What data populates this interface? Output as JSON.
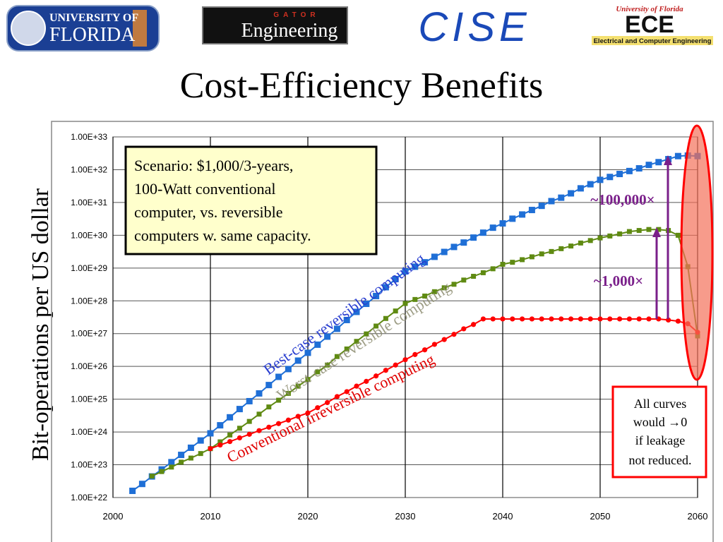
{
  "logos": {
    "uf": [
      "UNIVERSITY OF",
      "FLORIDA"
    ],
    "gator": [
      "GATOR",
      "Engineering"
    ],
    "cise": "CISE",
    "ece": [
      "University of Florida",
      "ECE",
      "Electrical and Computer Engineering"
    ]
  },
  "chart_data": {
    "type": "line",
    "title": "Cost-Efficiency Benefits",
    "y_label": "Bit-operations per US dollar",
    "log_y": true,
    "grid": true,
    "xlim": [
      2000,
      2060
    ],
    "xticks": [
      2000,
      2010,
      2020,
      2030,
      2040,
      2050,
      2060
    ],
    "ylim": [
      1e+22,
      1e+33
    ],
    "yticks": [
      {
        "value": 1e+22,
        "label": "1.00E+22"
      },
      {
        "value": 1e+23,
        "label": "1.00E+23"
      },
      {
        "value": 1e+24,
        "label": "1.00E+24"
      },
      {
        "value": 1e+25,
        "label": "1.00E+25"
      },
      {
        "value": 1e+26,
        "label": "1.00E+26"
      },
      {
        "value": 1e+27,
        "label": "1.00E+27"
      },
      {
        "value": 1e+28,
        "label": "1.00E+28"
      },
      {
        "value": 1e+29,
        "label": "1.00E+29"
      },
      {
        "value": 1e+30,
        "label": "1.00E+30"
      },
      {
        "value": 1e+31,
        "label": "1.00E+31"
      },
      {
        "value": 1e+32,
        "label": "1.00E+32"
      },
      {
        "value": 1e+33,
        "label": "1.00E+33"
      }
    ],
    "x": [
      2002,
      2003,
      2004,
      2005,
      2006,
      2007,
      2008,
      2009,
      2010,
      2011,
      2012,
      2013,
      2014,
      2015,
      2016,
      2017,
      2018,
      2019,
      2020,
      2021,
      2022,
      2023,
      2024,
      2025,
      2026,
      2027,
      2028,
      2029,
      2030,
      2031,
      2032,
      2033,
      2034,
      2035,
      2036,
      2037,
      2038,
      2039,
      2040,
      2041,
      2042,
      2043,
      2044,
      2045,
      2046,
      2047,
      2048,
      2049,
      2050,
      2051,
      2052,
      2053,
      2054,
      2055,
      2056,
      2057,
      2058,
      2059,
      2060
    ],
    "series": [
      {
        "name": "Best-case reversible computing",
        "color": "#1f6fd6",
        "label_color": "#2a3fd0",
        "marker": "square",
        "values": [
          1.6e+22,
          2.6e+22,
          4.4e+22,
          7.2e+22,
          1.2e+23,
          2e+23,
          3.3e+23,
          5.5e+23,
          9.1e+23,
          1.6e+24,
          2.8e+24,
          5e+24,
          8.7e+24,
          1.5e+25,
          2.7e+25,
          4.8e+25,
          8.3e+25,
          1.5e+26,
          2.6e+26,
          4.6e+26,
          8.1e+26,
          1.4e+27,
          2.6e+27,
          4.6e+27,
          8.1e+27,
          1.4e+28,
          2.6e+28,
          4.6e+28,
          7.9e+28,
          1.1e+29,
          1.5e+29,
          2.2e+29,
          3.1e+29,
          4.4e+29,
          6e+29,
          8.5e+29,
          1.2e+30,
          1.7e+30,
          2.3e+30,
          3.2e+30,
          4.3e+30,
          5.9e+30,
          7.9e+30,
          1.1e+31,
          1.4e+31,
          1.9e+31,
          2.7e+31,
          3.6e+31,
          4.9e+31,
          6e+31,
          7.4e+31,
          9.1e+31,
          1.1e+32,
          1.4e+32,
          1.7e+32,
          2.1e+32,
          2.6e+32,
          2.7e+32,
          2.6e+32
        ]
      },
      {
        "name": "Worst-case reversible computing",
        "color": "#5f8a12",
        "label_color": "#8c8c70",
        "marker": "square",
        "values": [
          null,
          null,
          4.5e+22,
          6.2e+22,
          8.5e+22,
          1.2e+23,
          1.6e+23,
          2.2e+23,
          3.1e+23,
          5e+23,
          8.1e+23,
          1.3e+24,
          2.1e+24,
          3.5e+24,
          5.8e+24,
          9.3e+24,
          1.5e+25,
          2.5e+25,
          4e+25,
          6.8e+25,
          1.1e+26,
          2e+26,
          3.4e+26,
          5.8e+26,
          9.8e+26,
          1.7e+27,
          2.9e+27,
          4.9e+27,
          8.3e+27,
          1.1e+28,
          1.4e+28,
          1.9e+28,
          2.5e+28,
          3.2e+28,
          4.3e+28,
          5.6e+28,
          7.2e+28,
          9.5e+28,
          1.3e+29,
          1.5e+29,
          1.8e+29,
          2.2e+29,
          2.7e+29,
          3.2e+29,
          3.9e+29,
          4.7e+29,
          5.8e+29,
          6.9e+29,
          8.3e+29,
          9.5e+29,
          1.1e+30,
          1.3e+30,
          1.4e+30,
          1.5e+30,
          1.5e+30,
          1.4e+30,
          1e+30,
          1.1e+29,
          8.5e+26
        ]
      },
      {
        "name": "Conventional irreversible computing",
        "color": "#ff0000",
        "label_color": "#e00000",
        "marker": "circle",
        "values": [
          null,
          null,
          null,
          null,
          null,
          null,
          null,
          null,
          3.1e+23,
          4e+23,
          5.1e+23,
          6.6e+23,
          8.5e+23,
          1.1e+24,
          1.4e+24,
          1.8e+24,
          2.3e+24,
          3e+24,
          3.8e+24,
          5.5e+24,
          7.9e+24,
          1.2e+25,
          1.7e+25,
          2.5e+25,
          3.5e+25,
          5.1e+25,
          7.6e+25,
          1.1e+26,
          1.6e+26,
          2.3e+26,
          3.2e+26,
          4.7e+26,
          6.6e+26,
          9.5e+26,
          1.4e+27,
          1.9e+27,
          2.8e+27,
          2.8e+27,
          2.8e+27,
          2.8e+27,
          2.8e+27,
          2.8e+27,
          2.8e+27,
          2.8e+27,
          2.8e+27,
          2.8e+27,
          2.8e+27,
          2.8e+27,
          2.8e+27,
          2.8e+27,
          2.8e+27,
          2.8e+27,
          2.8e+27,
          2.8e+27,
          2.8e+27,
          2.6e+27,
          2.4e+27,
          2e+27,
          1.1e+27
        ]
      }
    ],
    "annotations": {
      "scenario": [
        "Scenario: $1,000/3-years,",
        "100-Watt conventional",
        "computer, vs. reversible",
        "computers w. same capacity."
      ],
      "ratio_large": "~100,000×",
      "ratio_small": "~1,000×",
      "leakage": [
        "All curves",
        "would →0",
        "if leakage",
        "not reduced."
      ]
    }
  }
}
